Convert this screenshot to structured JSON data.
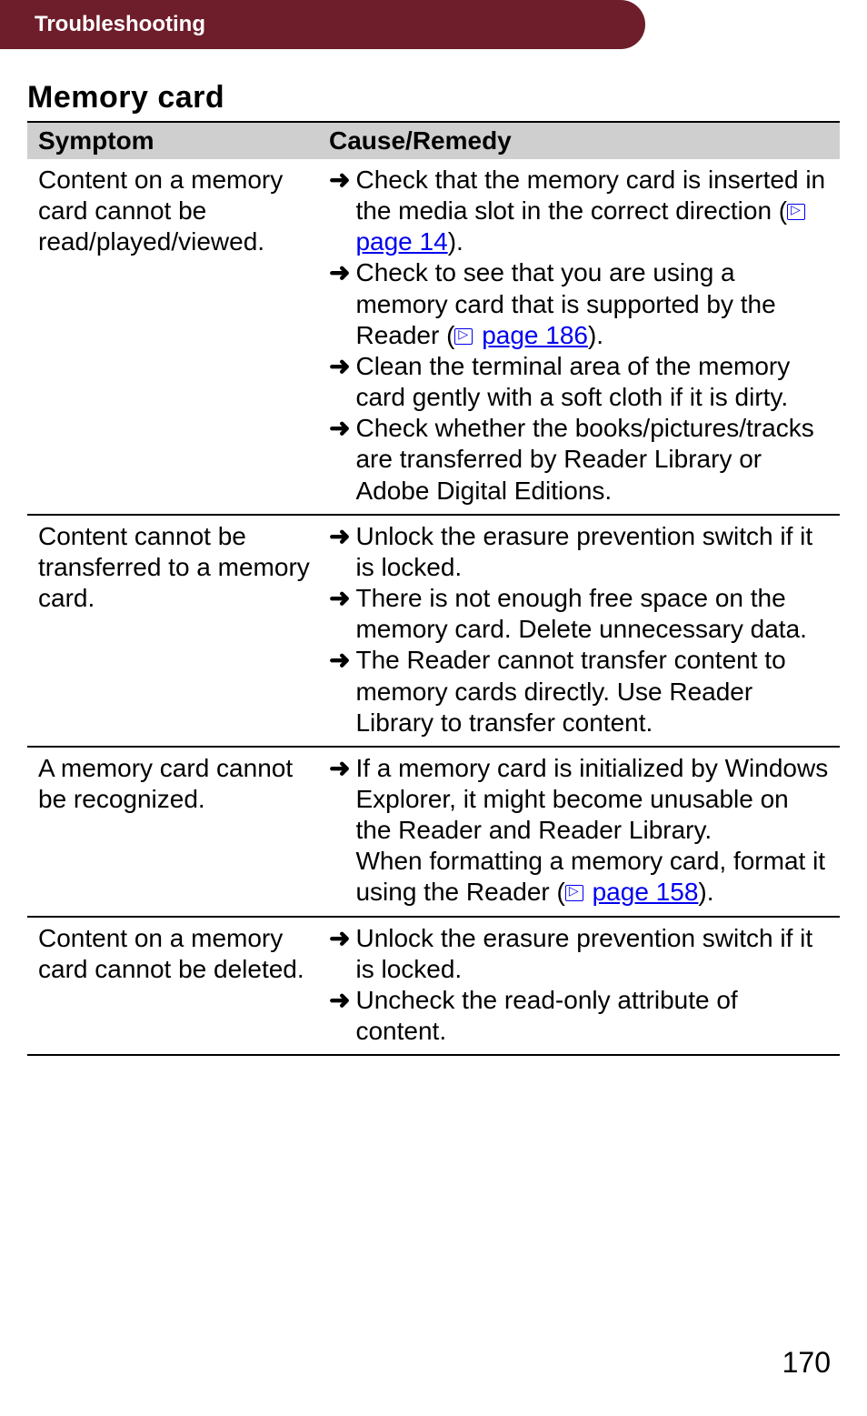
{
  "header_title": "Troubleshooting",
  "section_title": "Memory card",
  "table": {
    "col_symptom": "Symptom",
    "col_remedy": "Cause/Remedy",
    "rows": [
      {
        "symptom": "Content on a memory card cannot be read/played/viewed.",
        "remedies": [
          {
            "pre": "Check that the memory card is inserted in the media slot in the correct direction (",
            "link": "page 14",
            "post": ")."
          },
          {
            "pre": "Check to see that you are using a memory card that is supported by the Reader (",
            "link": "page 186",
            "post": ")."
          },
          {
            "pre": "Clean the terminal area of the memory card gently with a soft cloth if it is dirty."
          },
          {
            "pre": "Check whether the books/pictures/tracks are transferred by Reader Library or Adobe Digital Editions."
          }
        ]
      },
      {
        "symptom": "Content cannot be transferred to a memory card.",
        "remedies": [
          {
            "pre": "Unlock the erasure prevention switch if it is locked."
          },
          {
            "pre": "There is not enough free space on the memory card. Delete unnecessary data."
          },
          {
            "pre": "The Reader cannot transfer content to memory cards directly. Use Reader Library to transfer content."
          }
        ]
      },
      {
        "symptom": "A memory card cannot be recognized.",
        "remedies": [
          {
            "pre": "If a memory card is initialized by Windows Explorer, it might become unusable on the Reader and Reader Library.\nWhen formatting a memory card, format it using the Reader (",
            "link": "page 158",
            "post": ")."
          }
        ]
      },
      {
        "symptom": "Content on a memory card cannot be deleted.",
        "remedies": [
          {
            "pre": "Unlock the erasure prevention switch if it is locked."
          },
          {
            "pre": "Uncheck the read-only attribute of content."
          }
        ]
      }
    ]
  },
  "page_number": "170",
  "colors": {
    "header_bg": "#6e1d2a",
    "header_text": "#ffffff",
    "th_bg": "#cfcfcf",
    "link": "#0000ee",
    "text": "#000000"
  },
  "typography": {
    "body_font": "Arial, Helvetica, sans-serif",
    "header_fontsize": 24,
    "section_fontsize": 34,
    "th_fontsize": 28,
    "td_fontsize": 28,
    "pagenum_fontsize": 32
  }
}
